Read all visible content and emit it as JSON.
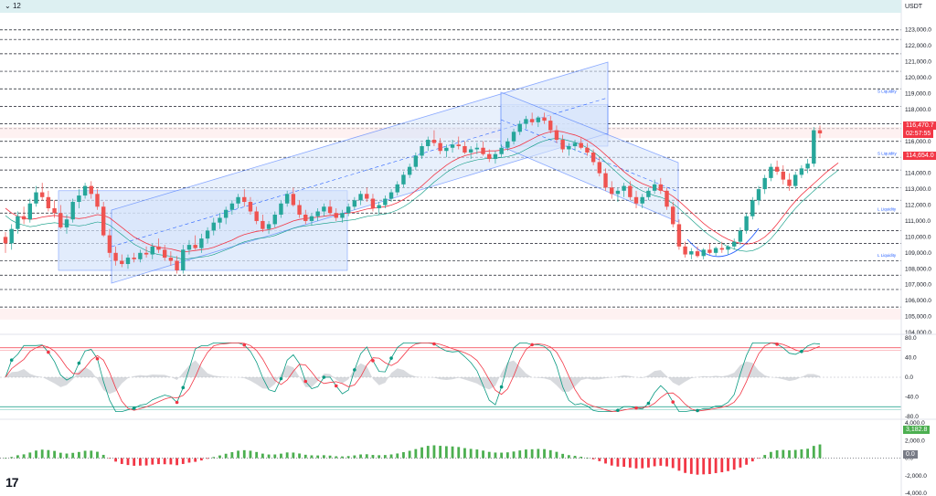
{
  "toolbar": {
    "interval_label": "12",
    "interval_icon": "chevron-down-icon",
    "currency": "USDT"
  },
  "colors": {
    "up": "#26a69a",
    "down": "#ef5350",
    "channel": "#2962ff",
    "channel_fill": "#d6e4fb",
    "ma": "#f23645",
    "ma2": "#089981",
    "osc_red": "#f23645",
    "osc_green": "#089981",
    "grid": "#131722",
    "pane_bg": "#ffffff",
    "level_band": "#fde8e8",
    "hist_up": "#4caf50",
    "hist_down": "#f23645"
  },
  "chart_data": [
    {
      "type": "candlestick",
      "ylim": [
        104000,
        123500
      ],
      "y_ticks": [
        "123,000.0",
        "122,000.0",
        "121,000.0",
        "120,000.0",
        "119,000.0",
        "118,000.0",
        "117,000.0",
        "116,000.0",
        "115,000.0",
        "114,000.0",
        "113,000.0",
        "112,000.0",
        "111,000.0",
        "110,000.0",
        "109,000.0",
        "108,000.0",
        "107,000.0",
        "106,000.0",
        "105,000.0",
        "104,000.0"
      ],
      "horizontal_levels": [
        123000,
        122400,
        121500,
        120400,
        119300,
        118200,
        117100,
        116800,
        116000,
        115000,
        114200,
        113100,
        112300,
        111500,
        110400,
        109600,
        108500,
        107600,
        106700,
        105600
      ],
      "liquidity_labels": [
        {
          "text": "S Liquidity",
          "y": 119000
        },
        {
          "text": "S Liquidity",
          "y": 115100
        },
        {
          "text": "L Liquidity",
          "y": 111600
        },
        {
          "text": "L Liquidity",
          "y": 108700
        }
      ],
      "last_price": "116,470.7",
      "countdown": "02:57:55",
      "ma_price": "114,654.0",
      "ohlc": [
        [
          110000,
          110300,
          109000,
          109600
        ],
        [
          109600,
          110800,
          109200,
          110500
        ],
        [
          110500,
          111600,
          110200,
          111300
        ],
        [
          111300,
          111900,
          110800,
          111100
        ],
        [
          111100,
          112400,
          110900,
          112100
        ],
        [
          112100,
          113200,
          111900,
          112800
        ],
        [
          112800,
          113400,
          112300,
          112500
        ],
        [
          112500,
          112900,
          111600,
          111800
        ],
        [
          111800,
          112300,
          111200,
          111500
        ],
        [
          111500,
          112000,
          110500,
          110600
        ],
        [
          110600,
          111400,
          110200,
          111100
        ],
        [
          111100,
          112400,
          110900,
          112200
        ],
        [
          112200,
          113000,
          111800,
          112600
        ],
        [
          112600,
          113400,
          112400,
          113200
        ],
        [
          113200,
          113500,
          112400,
          112700
        ],
        [
          112700,
          113000,
          111700,
          111900
        ],
        [
          111900,
          112200,
          110000,
          110100
        ],
        [
          110100,
          110500,
          108700,
          109000
        ],
        [
          109000,
          109400,
          108200,
          108500
        ],
        [
          108500,
          108900,
          108100,
          108300
        ],
        [
          108300,
          108900,
          108000,
          108700
        ],
        [
          108700,
          109000,
          108400,
          108600
        ],
        [
          108600,
          109200,
          108400,
          109000
        ],
        [
          109000,
          109400,
          108700,
          108900
        ],
        [
          108900,
          109600,
          108600,
          109400
        ],
        [
          109400,
          109900,
          109000,
          109200
        ],
        [
          109200,
          109500,
          108500,
          108700
        ],
        [
          108700,
          109100,
          108200,
          108500
        ],
        [
          108500,
          108800,
          107700,
          107900
        ],
        [
          107900,
          109500,
          107700,
          109200
        ],
        [
          109200,
          109800,
          108900,
          109500
        ],
        [
          109500,
          110100,
          109200,
          109300
        ],
        [
          109300,
          110200,
          109000,
          109900
        ],
        [
          109900,
          110600,
          109600,
          110400
        ],
        [
          110400,
          111200,
          110100,
          110900
        ],
        [
          110900,
          111500,
          110500,
          111200
        ],
        [
          111200,
          111900,
          110800,
          111700
        ],
        [
          111700,
          112300,
          111400,
          112100
        ],
        [
          112100,
          112700,
          111800,
          112500
        ],
        [
          112500,
          113000,
          111900,
          112200
        ],
        [
          112200,
          112500,
          111400,
          111600
        ],
        [
          111600,
          111900,
          110800,
          111000
        ],
        [
          111000,
          111400,
          110300,
          110500
        ],
        [
          110500,
          111000,
          110200,
          110800
        ],
        [
          110800,
          111600,
          110600,
          111400
        ],
        [
          111400,
          112300,
          111200,
          112100
        ],
        [
          112100,
          112900,
          111900,
          112700
        ],
        [
          112700,
          113100,
          111900,
          112000
        ],
        [
          112000,
          112300,
          111200,
          111400
        ],
        [
          111400,
          111700,
          110800,
          111000
        ],
        [
          111000,
          111500,
          110700,
          111300
        ],
        [
          111300,
          111800,
          111000,
          111600
        ],
        [
          111600,
          112100,
          111300,
          111900
        ],
        [
          111900,
          112300,
          111400,
          111500
        ],
        [
          111500,
          111800,
          111000,
          111200
        ],
        [
          111200,
          111700,
          110900,
          111500
        ],
        [
          111500,
          112100,
          111300,
          111900
        ],
        [
          111900,
          112500,
          111700,
          112300
        ],
        [
          112300,
          112900,
          112000,
          112700
        ],
        [
          112700,
          113100,
          112200,
          112400
        ],
        [
          112400,
          112700,
          111600,
          111800
        ],
        [
          111800,
          112200,
          111400,
          112000
        ],
        [
          112000,
          112600,
          111800,
          112400
        ],
        [
          112400,
          113000,
          112200,
          112800
        ],
        [
          112800,
          113500,
          112600,
          113300
        ],
        [
          113300,
          114100,
          113100,
          113900
        ],
        [
          113900,
          114600,
          113700,
          114400
        ],
        [
          114400,
          115300,
          114200,
          115100
        ],
        [
          115100,
          115900,
          114900,
          115700
        ],
        [
          115700,
          116300,
          115400,
          116100
        ],
        [
          116100,
          116700,
          115700,
          115900
        ],
        [
          115900,
          116200,
          115200,
          115400
        ],
        [
          115400,
          115800,
          115000,
          115600
        ],
        [
          115600,
          116100,
          115300,
          115800
        ],
        [
          115800,
          116300,
          115500,
          115700
        ],
        [
          115700,
          116000,
          115200,
          115300
        ],
        [
          115300,
          115700,
          114900,
          115500
        ],
        [
          115500,
          115900,
          115200,
          115600
        ],
        [
          115600,
          116000,
          115100,
          115200
        ],
        [
          115200,
          115500,
          114700,
          114900
        ],
        [
          114900,
          115400,
          114600,
          115200
        ],
        [
          115200,
          115800,
          115000,
          115600
        ],
        [
          115600,
          116200,
          115400,
          116000
        ],
        [
          116000,
          116800,
          115800,
          116600
        ],
        [
          116600,
          117300,
          116400,
          117100
        ],
        [
          117100,
          117600,
          116800,
          117400
        ],
        [
          117400,
          117800,
          117000,
          117200
        ],
        [
          117200,
          117600,
          116900,
          117500
        ],
        [
          117500,
          117800,
          117100,
          117300
        ],
        [
          117300,
          117600,
          116500,
          116700
        ],
        [
          116700,
          117000,
          115900,
          116100
        ],
        [
          116100,
          116400,
          115300,
          115500
        ],
        [
          115500,
          115900,
          115100,
          115700
        ],
        [
          115700,
          116100,
          115400,
          115900
        ],
        [
          115900,
          116200,
          115500,
          115600
        ],
        [
          115600,
          115900,
          115100,
          115300
        ],
        [
          115300,
          115500,
          114500,
          114700
        ],
        [
          114700,
          115000,
          113800,
          114000
        ],
        [
          114000,
          114300,
          112900,
          113100
        ],
        [
          113100,
          113500,
          112400,
          112700
        ],
        [
          112700,
          113100,
          112200,
          112900
        ],
        [
          112900,
          113400,
          112500,
          113200
        ],
        [
          113200,
          113500,
          112300,
          112500
        ],
        [
          112500,
          112900,
          111800,
          112100
        ],
        [
          112100,
          112700,
          111800,
          112500
        ],
        [
          112500,
          113100,
          112300,
          112900
        ],
        [
          112900,
          113600,
          112700,
          113300
        ],
        [
          113300,
          113700,
          112700,
          112900
        ],
        [
          112900,
          113100,
          111700,
          111900
        ],
        [
          111900,
          112200,
          110600,
          110800
        ],
        [
          110800,
          111100,
          109200,
          109400
        ],
        [
          109400,
          109700,
          108700,
          108900
        ],
        [
          108900,
          109300,
          108600,
          109100
        ],
        [
          109100,
          109400,
          108700,
          108800
        ],
        [
          108800,
          109300,
          108600,
          109200
        ],
        [
          109200,
          109600,
          108900,
          109000
        ],
        [
          109000,
          109400,
          108800,
          109300
        ],
        [
          109300,
          109700,
          109000,
          109200
        ],
        [
          109200,
          109500,
          108900,
          109400
        ],
        [
          109400,
          109900,
          109200,
          109700
        ],
        [
          109700,
          110600,
          109500,
          110400
        ],
        [
          110400,
          111500,
          110200,
          111300
        ],
        [
          111300,
          112500,
          111100,
          112300
        ],
        [
          112300,
          113200,
          112000,
          113000
        ],
        [
          113000,
          113900,
          112700,
          113700
        ],
        [
          113700,
          114600,
          113500,
          114400
        ],
        [
          114400,
          114800,
          113900,
          114100
        ],
        [
          114100,
          114500,
          113300,
          113600
        ],
        [
          113600,
          114000,
          112900,
          113200
        ],
        [
          113200,
          114100,
          113000,
          113900
        ],
        [
          113900,
          114500,
          113700,
          114300
        ],
        [
          114300,
          114900,
          114000,
          114600
        ],
        [
          114600,
          116900,
          114400,
          116700
        ],
        [
          116700,
          117000,
          116200,
          116500
        ]
      ],
      "ma_line": [
        111800,
        111500,
        111300,
        111200,
        111100,
        111150,
        111250,
        111300,
        111350,
        111300,
        111250,
        111200,
        111150,
        111200,
        111300,
        111400,
        111350,
        111200,
        110900,
        110600,
        110300,
        110000,
        109800,
        109600,
        109450,
        109350,
        109300,
        109250,
        109150,
        109050,
        109100,
        109150,
        109200,
        109250,
        109350,
        109500,
        109650,
        109800,
        110000,
        110150,
        110250,
        110350,
        110400,
        110450,
        110550,
        110700,
        110850,
        111000,
        111100,
        111150,
        111200,
        111250,
        111300,
        111350,
        111400,
        111450,
        111500,
        111550,
        111650,
        111750,
        111800,
        111850,
        111900,
        112000,
        112150,
        112350,
        112600,
        112900,
        113200,
        113550,
        113900,
        114200,
        114500,
        114750,
        114950,
        115100,
        115200,
        115300,
        115350,
        115400,
        115400,
        115450,
        115500,
        115600,
        115750,
        115950,
        116150,
        116350,
        116500,
        116600,
        116650,
        116600,
        116500,
        116400,
        116250,
        116050,
        115800,
        115500,
        115150,
        114800,
        114450,
        114100,
        113800,
        113550,
        113350,
        113200,
        113050,
        112950,
        112800,
        112550,
        112250,
        111900,
        111550,
        111200,
        110850,
        110550,
        110300,
        110050,
        109850,
        109700,
        109600,
        109550,
        109600,
        109750,
        110000,
        110350,
        110800,
        111300,
        111800,
        112250,
        112650,
        113000,
        113350,
        113700,
        114050,
        114350,
        114650
      ],
      "channels": [
        {
          "name": "",
          "points": [
            [
              110900,
              122
            ],
            [
              118500,
              548
            ]
          ],
          "width": 3200
        },
        {
          "name": "",
          "points": [
            [
              118500,
              548
            ],
            [
              111100,
              740
            ]
          ],
          "width": 2600
        }
      ],
      "boxes": [
        {
          "x0": 64,
          "x1": 380,
          "y0": 112900,
          "y1": 107900
        },
        {
          "x0": 548,
          "x1": 665,
          "y0": 118300,
          "y1": 115700
        }
      ]
    },
    {
      "type": "line",
      "name": "",
      "ylim": [
        -80,
        80
      ],
      "y_ticks": [
        "80.0",
        "40.0",
        "0.0",
        "-40.0",
        "-80.0"
      ],
      "upper_level": 60,
      "lower_level": -60
    },
    {
      "type": "bar",
      "name": "",
      "ylim": [
        -4000,
        4000
      ],
      "y_ticks": [
        "4,000.0",
        "2,000.0",
        "0.0",
        "-2,000.0",
        "-4,000.0"
      ],
      "last_value": "3,182.8",
      "zero_label": "0.0"
    }
  ]
}
